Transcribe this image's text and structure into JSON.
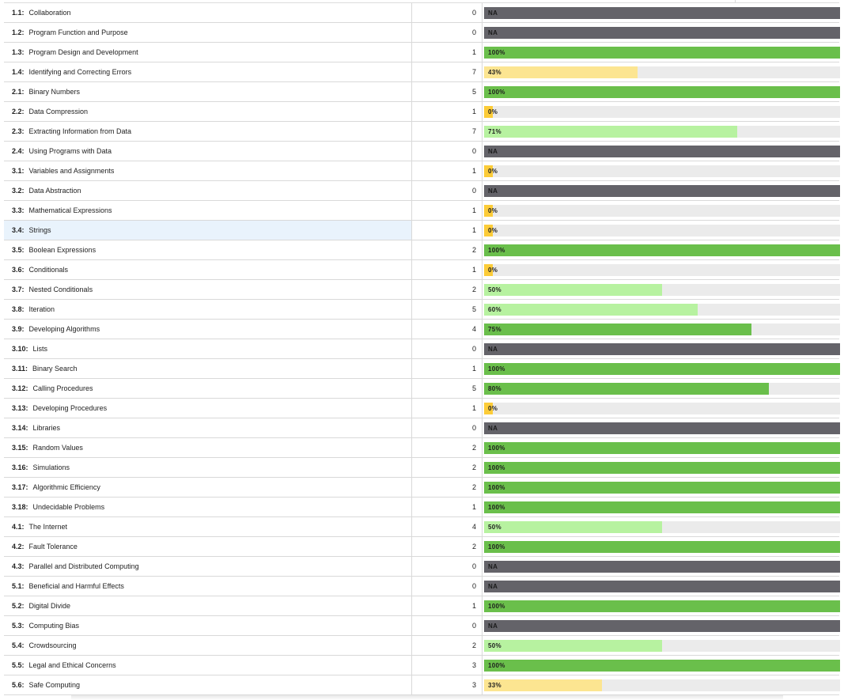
{
  "colors": {
    "na": "#646369",
    "full": "#6abf4b",
    "high": "#b7f2a0",
    "mid": "#fce591",
    "low": "#fccc38",
    "track": "#ebebeb"
  },
  "rows": [
    {
      "code": "1.1:",
      "name": "Collaboration",
      "count": "0",
      "label": "NA",
      "status": "na",
      "value": null
    },
    {
      "code": "1.2:",
      "name": "Program Function and Purpose",
      "count": "0",
      "label": "NA",
      "status": "na",
      "value": null
    },
    {
      "code": "1.3:",
      "name": "Program Design and Development",
      "count": "1",
      "label": "100%",
      "status": "full",
      "value": 100
    },
    {
      "code": "1.4:",
      "name": "Identifying and Correcting Errors",
      "count": "7",
      "label": "43%",
      "status": "mid",
      "value": 43
    },
    {
      "code": "2.1:",
      "name": "Binary Numbers",
      "count": "5",
      "label": "100%",
      "status": "full",
      "value": 100
    },
    {
      "code": "2.2:",
      "name": "Data Compression",
      "count": "1",
      "label": "0%",
      "status": "low",
      "value": 0
    },
    {
      "code": "2.3:",
      "name": "Extracting Information from Data",
      "count": "7",
      "label": "71%",
      "status": "high",
      "value": 71
    },
    {
      "code": "2.4:",
      "name": "Using Programs with Data",
      "count": "0",
      "label": "NA",
      "status": "na",
      "value": null
    },
    {
      "code": "3.1:",
      "name": "Variables and Assignments",
      "count": "1",
      "label": "0%",
      "status": "low",
      "value": 0
    },
    {
      "code": "3.2:",
      "name": "Data Abstraction",
      "count": "0",
      "label": "NA",
      "status": "na",
      "value": null
    },
    {
      "code": "3.3:",
      "name": "Mathematical Expressions",
      "count": "1",
      "label": "0%",
      "status": "low",
      "value": 0
    },
    {
      "code": "3.4:",
      "name": "Strings",
      "count": "1",
      "label": "0%",
      "status": "low",
      "value": 0,
      "highlight": true
    },
    {
      "code": "3.5:",
      "name": "Boolean Expressions",
      "count": "2",
      "label": "100%",
      "status": "full",
      "value": 100
    },
    {
      "code": "3.6:",
      "name": "Conditionals",
      "count": "1",
      "label": "0%",
      "status": "low",
      "value": 0
    },
    {
      "code": "3.7:",
      "name": "Nested Conditionals",
      "count": "2",
      "label": "50%",
      "status": "high",
      "value": 50
    },
    {
      "code": "3.8:",
      "name": "Iteration",
      "count": "5",
      "label": "60%",
      "status": "high",
      "value": 60
    },
    {
      "code": "3.9:",
      "name": "Developing Algorithms",
      "count": "4",
      "label": "75%",
      "status": "full",
      "value": 75
    },
    {
      "code": "3.10:",
      "name": "Lists",
      "count": "0",
      "label": "NA",
      "status": "na",
      "value": null
    },
    {
      "code": "3.11:",
      "name": "Binary Search",
      "count": "1",
      "label": "100%",
      "status": "full",
      "value": 100
    },
    {
      "code": "3.12:",
      "name": "Calling Procedures",
      "count": "5",
      "label": "80%",
      "status": "full",
      "value": 80
    },
    {
      "code": "3.13:",
      "name": "Developing Procedures",
      "count": "1",
      "label": "0%",
      "status": "low",
      "value": 0
    },
    {
      "code": "3.14:",
      "name": "Libraries",
      "count": "0",
      "label": "NA",
      "status": "na",
      "value": null
    },
    {
      "code": "3.15:",
      "name": "Random Values",
      "count": "2",
      "label": "100%",
      "status": "full",
      "value": 100
    },
    {
      "code": "3.16:",
      "name": "Simulations",
      "count": "2",
      "label": "100%",
      "status": "full",
      "value": 100
    },
    {
      "code": "3.17:",
      "name": "Algorithmic Efficiency",
      "count": "2",
      "label": "100%",
      "status": "full",
      "value": 100
    },
    {
      "code": "3.18:",
      "name": "Undecidable Problems",
      "count": "1",
      "label": "100%",
      "status": "full",
      "value": 100
    },
    {
      "code": "4.1:",
      "name": "The Internet",
      "count": "4",
      "label": "50%",
      "status": "high",
      "value": 50
    },
    {
      "code": "4.2:",
      "name": "Fault Tolerance",
      "count": "2",
      "label": "100%",
      "status": "full",
      "value": 100
    },
    {
      "code": "4.3:",
      "name": "Parallel and Distributed Computing",
      "count": "0",
      "label": "NA",
      "status": "na",
      "value": null
    },
    {
      "code": "5.1:",
      "name": "Beneficial and Harmful Effects",
      "count": "0",
      "label": "NA",
      "status": "na",
      "value": null
    },
    {
      "code": "5.2:",
      "name": "Digital Divide",
      "count": "1",
      "label": "100%",
      "status": "full",
      "value": 100
    },
    {
      "code": "5.3:",
      "name": "Computing Bias",
      "count": "0",
      "label": "NA",
      "status": "na",
      "value": null
    },
    {
      "code": "5.4:",
      "name": "Crowdsourcing",
      "count": "2",
      "label": "50%",
      "status": "high",
      "value": 50
    },
    {
      "code": "5.5:",
      "name": "Legal and Ethical Concerns",
      "count": "3",
      "label": "100%",
      "status": "full",
      "value": 100
    },
    {
      "code": "5.6:",
      "name": "Safe Computing",
      "count": "3",
      "label": "33%",
      "status": "mid",
      "value": 33
    }
  ]
}
